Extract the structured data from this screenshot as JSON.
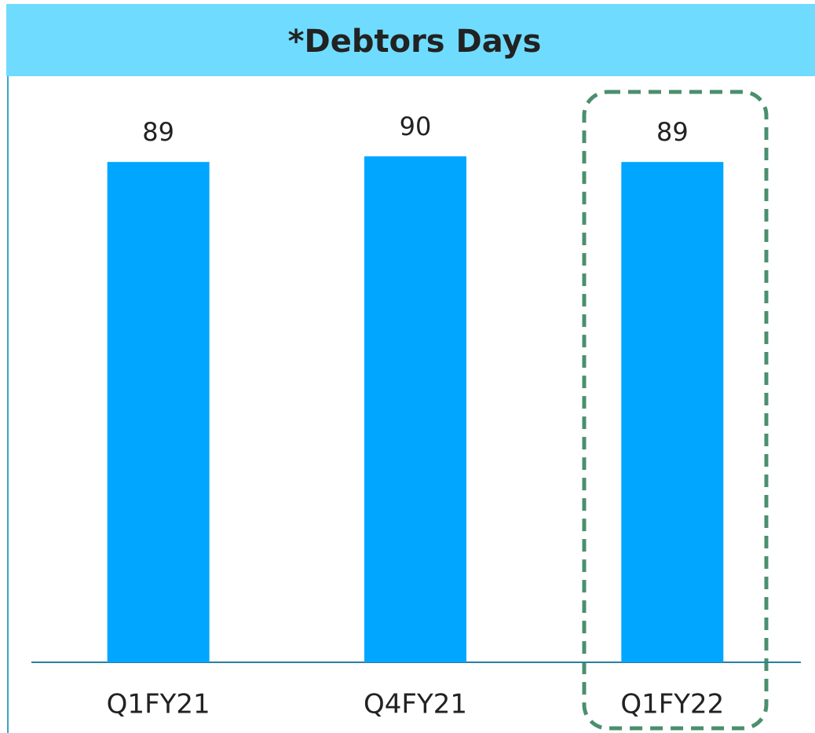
{
  "chart_data": {
    "type": "bar",
    "title": "*Debtors Days",
    "categories": [
      "Q1FY21",
      "Q4FY21",
      "Q1FY22"
    ],
    "values": [
      89,
      90,
      89
    ],
    "color": "#00a6ff"
  }
}
